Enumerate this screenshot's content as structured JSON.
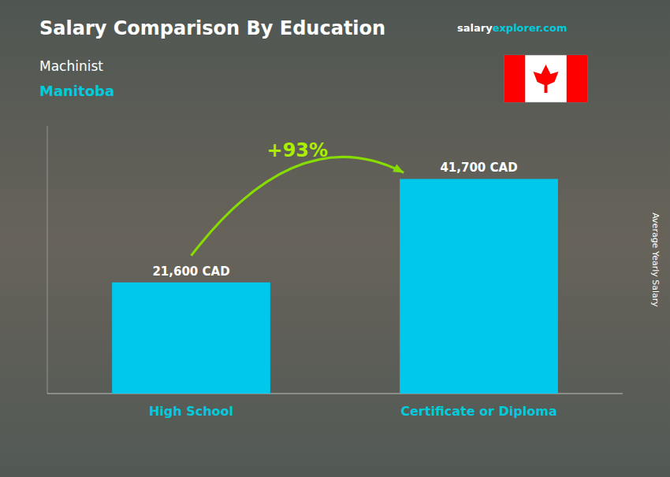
{
  "chart_data": {
    "type": "bar",
    "title": "Salary Comparison By Education",
    "subtitle": "Machinist",
    "annotations": [
      "Manitoba",
      "salary",
      "explorer.com",
      "+93%"
    ],
    "ylabel": "Average Yearly Salary",
    "categories": [
      "High School",
      "Certificate or Diploma"
    ],
    "values": [
      21600,
      41700
    ],
    "value_labels": [
      "21,600 CAD",
      "41,700 CAD"
    ],
    "color": "#00C8EC",
    "ylim": [
      0,
      52000
    ],
    "grid": false,
    "data_labels": true,
    "tick_labels": "x"
  }
}
